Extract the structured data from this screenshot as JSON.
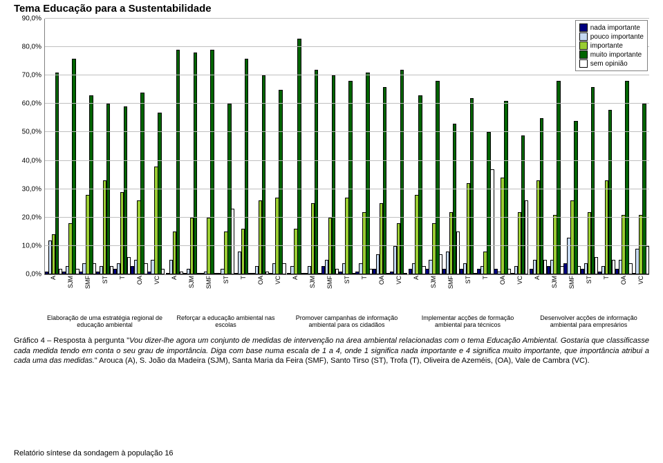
{
  "title": "Tema Educação para a Sustentabilidade",
  "y": {
    "max": 90,
    "step": 10,
    "format_suffix": ",0%",
    "values": [
      0,
      10,
      20,
      30,
      40,
      50,
      60,
      70,
      80,
      90
    ]
  },
  "series": [
    {
      "name": "nada importante",
      "color": "#000080"
    },
    {
      "name": "pouco importante",
      "color": "#c5d9f1"
    },
    {
      "name": "importante",
      "color": "#9acd32"
    },
    {
      "name": "muito importante",
      "color": "#006400"
    },
    {
      "name": "sem opinião",
      "color": "#ffffff"
    }
  ],
  "categories": [
    "A",
    "SJM",
    "SMF",
    "ST",
    "T",
    "OA",
    "VC"
  ],
  "groups": [
    {
      "label": "Elaboração de uma estratégia regional de educação ambiental",
      "data": [
        [
          1,
          12,
          14,
          71,
          2
        ],
        [
          1,
          3,
          18,
          76,
          2
        ],
        [
          1,
          4,
          28,
          63,
          4
        ],
        [
          1,
          3,
          33,
          60,
          3
        ],
        [
          2,
          4,
          29,
          59,
          6
        ],
        [
          3,
          5,
          26,
          64,
          4
        ],
        [
          1,
          5,
          38,
          57,
          2
        ]
      ]
    },
    {
      "label": "Reforçar a educação ambiental nas escolas",
      "data": [
        [
          0,
          5,
          15,
          79,
          1
        ],
        [
          0,
          2,
          20,
          78,
          0
        ],
        [
          0,
          1,
          20,
          79,
          0
        ],
        [
          0,
          2,
          15,
          60,
          23
        ],
        [
          0,
          8,
          16,
          76,
          0
        ],
        [
          0,
          3,
          26,
          70,
          1
        ],
        [
          0,
          4,
          27,
          65,
          4
        ]
      ]
    },
    {
      "label": "Promover campanhas de informação ambiental para os cidadãos",
      "data": [
        [
          0,
          3,
          16,
          83,
          0
        ],
        [
          0,
          3,
          25,
          72,
          0
        ],
        [
          3,
          5,
          20,
          70,
          2
        ],
        [
          1,
          4,
          27,
          68,
          0
        ],
        [
          1,
          4,
          22,
          71,
          2
        ],
        [
          2,
          7,
          25,
          66,
          0
        ],
        [
          1,
          10,
          18,
          72,
          0
        ]
      ]
    },
    {
      "label": "Implementar acções de formação ambiental para técnicos",
      "data": [
        [
          2,
          4,
          28,
          63,
          3
        ],
        [
          2,
          5,
          18,
          68,
          7
        ],
        [
          2,
          8,
          22,
          53,
          15
        ],
        [
          2,
          4,
          32,
          62,
          0
        ],
        [
          2,
          3,
          8,
          50,
          37
        ],
        [
          2,
          1,
          34,
          61,
          2
        ],
        [
          0,
          3,
          22,
          49,
          26
        ]
      ]
    },
    {
      "label": "Desenvolver acções de informação ambiental para empresários",
      "data": [
        [
          2,
          5,
          33,
          55,
          5
        ],
        [
          3,
          5,
          21,
          68,
          3
        ],
        [
          4,
          13,
          26,
          54,
          3
        ],
        [
          2,
          4,
          22,
          66,
          6
        ],
        [
          1,
          3,
          33,
          58,
          5
        ],
        [
          2,
          5,
          21,
          68,
          4
        ],
        [
          0,
          9,
          21,
          60,
          10
        ]
      ]
    }
  ],
  "caption_html": "Gráfico 4 – Resposta à pergunta \"<i>Vou dizer-lhe agora um conjunto de medidas de intervenção na área ambiental relacionadas com o tema Educação Ambiental. Gostaria que classificasse cada medida tendo em conta o seu grau de importância. Diga com base numa escala de 1 a 4, onde 1 significa nada importante e 4 significa muito importante, que importância atribui a cada uma das medidas.</i>\" Arouca (A), S. João da Madeira (SJM), Santa Maria da Feira (SMF), Santo Tirso (ST), Trofa (T), Oliveira de Azeméis, (OA), Vale de Cambra (VC).",
  "footer": "Relatório síntese da sondagem à população    16"
}
